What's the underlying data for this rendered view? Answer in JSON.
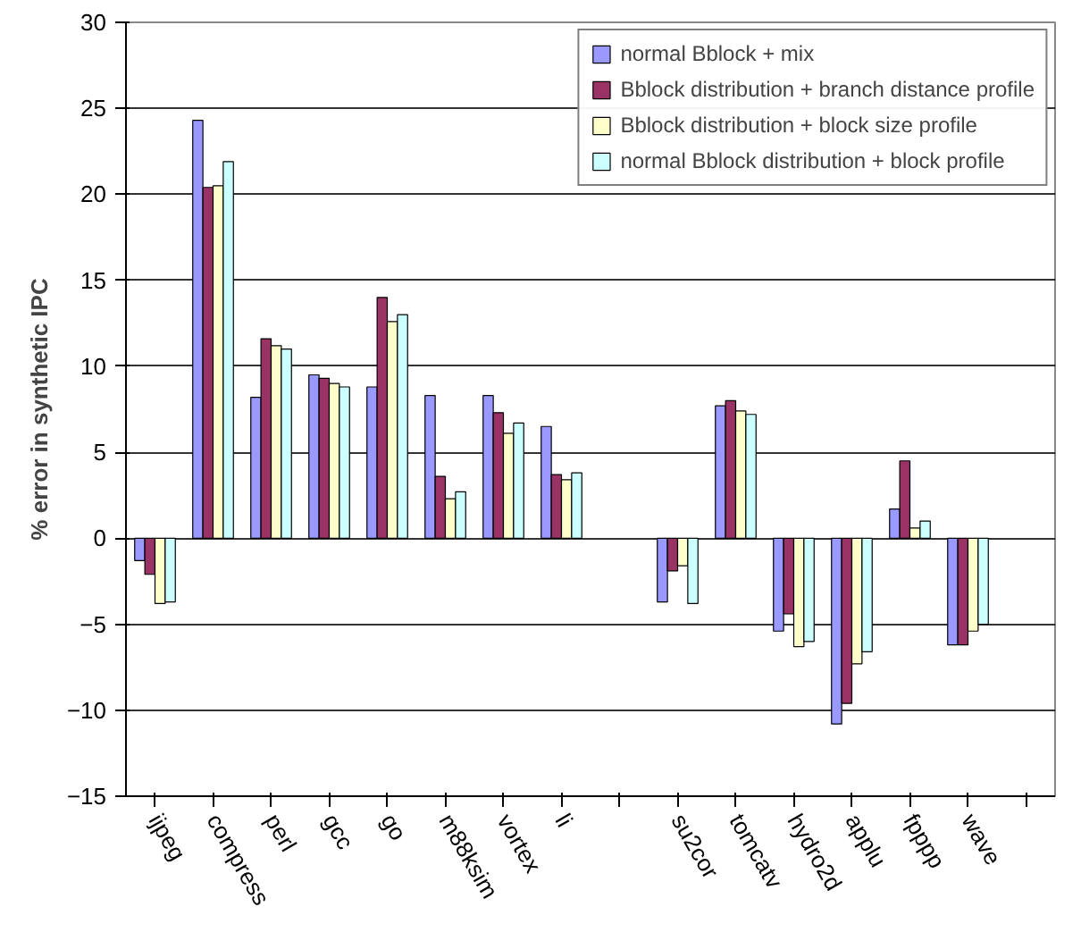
{
  "chart_data": {
    "type": "bar",
    "ylabel": "% error in synthetic IPC",
    "categories": [
      "ijpeg",
      "compress",
      "perl",
      "gcc",
      "go",
      "m88ksim",
      "vortex",
      "li",
      null,
      "su2cor",
      "tomcatv",
      "hydro2d",
      "applu",
      "fpppp",
      "wave",
      null
    ],
    "series": [
      {
        "name": "normal Bblock + mix",
        "color": "#9999ff",
        "values": [
          -1.3,
          24.3,
          8.2,
          9.5,
          8.8,
          8.3,
          8.3,
          6.5,
          null,
          -3.7,
          7.7,
          -5.4,
          -10.8,
          1.7,
          -6.2,
          null
        ]
      },
      {
        "name": "Bblock distribution + branch distance profile",
        "color": "#993366",
        "values": [
          -2.1,
          20.4,
          11.6,
          9.3,
          14.0,
          3.6,
          7.3,
          3.7,
          null,
          -1.9,
          8.0,
          -4.4,
          -9.6,
          4.5,
          -6.2,
          null
        ]
      },
      {
        "name": "Bblock distribution + block size profile",
        "color": "#ffffcc",
        "values": [
          -3.8,
          20.5,
          11.2,
          9.0,
          12.6,
          2.3,
          6.1,
          3.4,
          null,
          -1.6,
          7.4,
          -6.3,
          -7.3,
          0.6,
          -5.4,
          null
        ]
      },
      {
        "name": "normal Bblock distribution + block profile",
        "color": "#ccffff",
        "values": [
          -3.7,
          21.9,
          11.0,
          8.8,
          13.0,
          2.7,
          6.7,
          3.8,
          null,
          -3.8,
          7.2,
          -6.0,
          -6.6,
          1.0,
          -5.0,
          null
        ]
      }
    ],
    "ylim": [
      -15,
      30
    ],
    "yticks": [
      -15,
      -10,
      -5,
      0,
      5,
      10,
      15,
      20,
      25,
      30
    ],
    "grid": "y",
    "legend": "top right"
  }
}
